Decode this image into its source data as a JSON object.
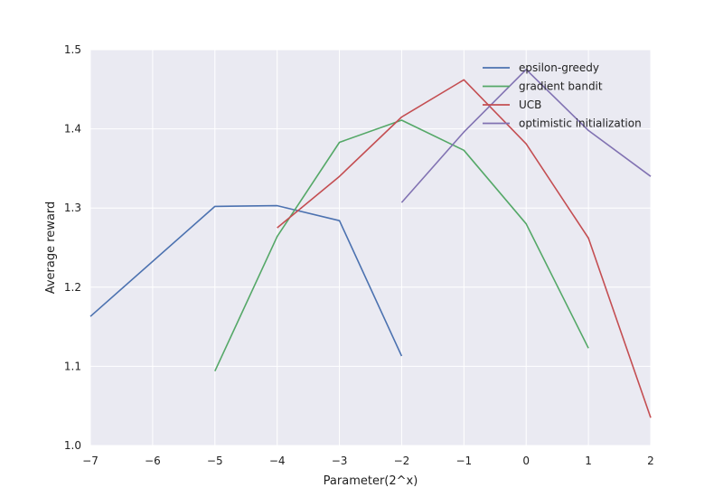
{
  "chart_data": {
    "type": "line",
    "title": "",
    "xlabel": "Parameter(2^x)",
    "ylabel": "Average reward",
    "xlim": [
      -7,
      2
    ],
    "ylim": [
      1.0,
      1.5
    ],
    "xticks": [
      -7,
      -6,
      -5,
      -4,
      -3,
      -2,
      -1,
      0,
      1,
      2
    ],
    "xtick_labels": [
      "−7",
      "−6",
      "−5",
      "−4",
      "−3",
      "−2",
      "−1",
      "0",
      "1",
      "2"
    ],
    "yticks": [
      1.0,
      1.1,
      1.2,
      1.3,
      1.4,
      1.5
    ],
    "ytick_labels": [
      "1.0",
      "1.1",
      "1.2",
      "1.3",
      "1.4",
      "1.5"
    ],
    "grid": true,
    "legend_position": "top-right",
    "background": "#eaeaf2",
    "series": [
      {
        "name": "epsilon-greedy",
        "color": "#4c72b0",
        "points": [
          [
            -7,
            1.163
          ],
          [
            -5,
            1.302
          ],
          [
            -4,
            1.303
          ],
          [
            -3,
            1.284
          ],
          [
            -2,
            1.113
          ]
        ]
      },
      {
        "name": "gradient bandit",
        "color": "#55a868",
        "points": [
          [
            -5,
            1.094
          ],
          [
            -4,
            1.264
          ],
          [
            -3,
            1.383
          ],
          [
            -2,
            1.411
          ],
          [
            -1,
            1.373
          ],
          [
            0,
            1.28
          ],
          [
            1,
            1.123
          ]
        ]
      },
      {
        "name": "UCB",
        "color": "#c44e52",
        "points": [
          [
            -4,
            1.275
          ],
          [
            -3,
            1.34
          ],
          [
            -2,
            1.415
          ],
          [
            -1,
            1.462
          ],
          [
            0,
            1.381
          ],
          [
            1,
            1.262
          ],
          [
            2,
            1.035
          ]
        ]
      },
      {
        "name": "optimistic initialization",
        "color": "#8172b2",
        "points": [
          [
            -2,
            1.307
          ],
          [
            -1,
            1.396
          ],
          [
            0,
            1.475
          ],
          [
            1,
            1.398
          ],
          [
            2,
            1.34
          ]
        ]
      }
    ]
  }
}
